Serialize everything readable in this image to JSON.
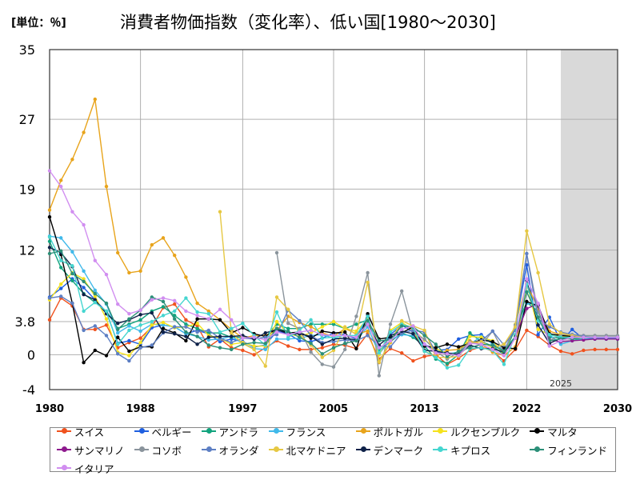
{
  "header": {
    "unit": "[単位：％]",
    "title": "消費者物価指数（変化率）、低い国[1980～2030]"
  },
  "chart_data": {
    "type": "line",
    "x_ticks": [
      1980,
      1988,
      1997,
      2005,
      2013,
      2022,
      2030
    ],
    "y_ticks": [
      35,
      27,
      19,
      12,
      3.8,
      0,
      -4
    ],
    "xlim": [
      1980,
      2030
    ],
    "ylim": [
      -4,
      35
    ],
    "grid": true,
    "forecast_from": 2025,
    "forecast_label": "2025",
    "legend_position": "bottom",
    "series": [
      {
        "name": "スイス",
        "color": "#f0521e",
        "values": [
          4.0,
          6.5,
          5.6,
          2.9,
          2.9,
          3.4,
          0.8,
          1.4,
          1.9,
          3.2,
          5.4,
          5.8,
          4.0,
          3.3,
          0.9,
          1.8,
          0.8,
          0.5,
          0.0,
          0.8,
          1.6,
          1.0,
          0.6,
          0.6,
          0.8,
          1.2,
          1.1,
          0.7,
          2.4,
          -0.5,
          0.7,
          0.2,
          -0.7,
          -0.2,
          0.0,
          -1.1,
          -0.4,
          0.5,
          0.9,
          0.4,
          -0.7,
          0.6,
          2.8,
          2.1,
          1.1,
          0.4,
          0.1,
          0.5,
          0.6,
          0.6,
          0.6
        ]
      },
      {
        "name": "ベルギー",
        "color": "#1f5fe0",
        "values": [
          6.6,
          7.6,
          8.7,
          7.7,
          6.3,
          4.9,
          1.3,
          1.6,
          1.2,
          3.1,
          3.4,
          3.2,
          2.4,
          2.8,
          2.4,
          1.5,
          1.8,
          1.5,
          0.9,
          1.1,
          2.7,
          2.4,
          1.6,
          1.5,
          1.9,
          2.5,
          2.3,
          1.8,
          4.5,
          0.0,
          2.3,
          3.4,
          2.6,
          1.2,
          0.5,
          0.6,
          1.8,
          2.2,
          2.3,
          1.2,
          0.4,
          3.2,
          10.3,
          2.3,
          4.3,
          1.5,
          2.9,
          1.8,
          1.9,
          1.9,
          1.9
        ]
      },
      {
        "name": "アンドラ",
        "color": "#11a37d",
        "values": [
          13.0,
          10.0,
          8.5,
          7.0,
          6.0,
          5.0,
          3.0,
          3.5,
          4.0,
          5.0,
          5.5,
          4.5,
          3.5,
          3.0,
          2.5,
          2.5,
          2.0,
          2.0,
          1.8,
          2.0,
          3.5,
          3.0,
          3.0,
          3.5,
          3.5,
          3.5,
          3.0,
          3.5,
          4.0,
          0.5,
          1.5,
          2.5,
          2.0,
          1.0,
          -0.5,
          -1.0,
          0.0,
          2.5,
          1.5,
          1.0,
          0.0,
          3.0,
          6.0,
          5.0,
          2.0,
          1.9,
          1.8,
          1.8,
          1.8,
          1.8,
          1.8
        ]
      },
      {
        "name": "フランス",
        "color": "#40b9ea",
        "values": [
          13.6,
          13.4,
          11.8,
          9.6,
          7.4,
          5.8,
          2.5,
          3.3,
          2.7,
          3.5,
          3.4,
          3.2,
          2.4,
          2.1,
          1.7,
          1.8,
          2.1,
          1.3,
          0.7,
          0.6,
          1.8,
          1.8,
          1.9,
          2.2,
          2.3,
          1.9,
          1.9,
          1.6,
          3.2,
          0.1,
          1.7,
          2.3,
          2.2,
          1.0,
          0.6,
          0.1,
          0.3,
          1.2,
          2.1,
          1.3,
          0.5,
          2.1,
          5.9,
          5.7,
          2.3,
          1.2,
          1.6,
          1.8,
          1.8,
          1.8,
          1.8
        ]
      },
      {
        "name": "ポルトガル",
        "color": "#e8a41c",
        "values": [
          16.6,
          20.0,
          22.4,
          25.5,
          29.3,
          19.3,
          11.7,
          9.4,
          9.6,
          12.6,
          13.4,
          11.4,
          8.9,
          5.9,
          5.0,
          4.0,
          2.9,
          1.9,
          2.2,
          2.2,
          2.8,
          4.4,
          3.7,
          3.2,
          2.5,
          2.1,
          3.0,
          2.4,
          2.7,
          -0.9,
          1.4,
          3.6,
          2.8,
          0.4,
          -0.2,
          0.5,
          0.6,
          1.6,
          1.2,
          0.3,
          -0.1,
          0.9,
          8.1,
          5.3,
          2.7,
          2.3,
          2.1,
          2.0,
          2.0,
          2.0,
          2.0
        ]
      },
      {
        "name": "ルクセンブルク",
        "color": "#f5e21c",
        "values": [
          6.3,
          8.1,
          9.4,
          8.7,
          6.7,
          4.1,
          0.3,
          -0.1,
          1.4,
          3.4,
          3.7,
          3.1,
          3.2,
          3.6,
          2.2,
          1.9,
          1.2,
          1.4,
          1.0,
          1.0,
          3.8,
          2.4,
          2.1,
          2.5,
          3.2,
          3.8,
          3.0,
          2.7,
          4.1,
          0.0,
          2.8,
          3.7,
          2.9,
          1.7,
          0.7,
          0.1,
          0.0,
          2.1,
          2.0,
          1.6,
          0.0,
          3.5,
          8.2,
          2.9,
          2.3,
          2.1,
          2.0,
          2.0,
          2.0,
          2.0,
          2.0
        ]
      },
      {
        "name": "マルタ",
        "color": "#000000",
        "values": [
          15.8,
          11.5,
          5.9,
          -0.9,
          0.5,
          -0.1,
          2.0,
          0.4,
          0.9,
          0.9,
          3.0,
          2.5,
          1.6,
          4.1,
          4.1,
          4.0,
          2.5,
          3.1,
          2.4,
          2.1,
          3.0,
          2.5,
          2.6,
          1.9,
          2.7,
          2.5,
          2.6,
          0.7,
          4.7,
          1.8,
          2.0,
          2.5,
          3.2,
          1.0,
          0.8,
          1.2,
          0.9,
          1.3,
          1.7,
          1.5,
          0.8,
          0.7,
          6.1,
          5.6,
          2.4,
          2.2,
          2.1,
          2.0,
          2.0,
          2.0,
          2.0
        ]
      },
      {
        "name": "サンマリノ",
        "color": "#8e1a8e",
        "values": [
          null,
          null,
          null,
          null,
          null,
          null,
          null,
          null,
          null,
          null,
          null,
          null,
          null,
          null,
          null,
          null,
          null,
          null,
          null,
          null,
          null,
          null,
          null,
          null,
          null,
          null,
          null,
          null,
          null,
          null,
          null,
          null,
          null,
          null,
          null,
          null,
          null,
          null,
          null,
          null,
          null,
          2.1,
          5.3,
          5.8,
          1.7,
          1.5,
          1.6,
          1.7,
          1.8,
          1.8,
          1.8
        ]
      },
      {
        "name": "コソボ",
        "color": "#8a949c",
        "values": [
          null,
          null,
          null,
          null,
          null,
          null,
          null,
          null,
          null,
          null,
          null,
          null,
          null,
          null,
          null,
          null,
          null,
          null,
          null,
          null,
          11.7,
          3.6,
          3.0,
          0.3,
          -1.1,
          -1.4,
          0.6,
          4.4,
          9.4,
          -2.4,
          3.5,
          7.3,
          2.5,
          1.8,
          0.4,
          -0.5,
          0.3,
          1.5,
          1.1,
          2.7,
          0.2,
          3.4,
          11.6,
          4.9,
          1.6,
          2.3,
          2.3,
          2.2,
          2.2,
          2.2,
          2.2
        ]
      },
      {
        "name": "オランダ",
        "color": "#5d7fc4",
        "values": [
          6.5,
          6.7,
          5.9,
          2.8,
          3.3,
          2.2,
          0.1,
          -0.7,
          0.8,
          1.1,
          2.5,
          3.2,
          3.2,
          2.6,
          2.8,
          1.9,
          1.4,
          1.9,
          1.8,
          2.0,
          2.3,
          5.1,
          3.9,
          2.2,
          1.4,
          1.5,
          1.7,
          1.6,
          2.2,
          1.0,
          0.9,
          2.5,
          2.8,
          2.6,
          0.3,
          0.2,
          0.1,
          1.3,
          1.6,
          2.7,
          1.1,
          2.8,
          11.6,
          4.1,
          3.2,
          2.6,
          2.3,
          2.1,
          2.0,
          2.0,
          2.0
        ]
      },
      {
        "name": "北マケドニア",
        "color": "#e6c843",
        "values": [
          null,
          null,
          null,
          null,
          null,
          null,
          null,
          null,
          null,
          null,
          null,
          null,
          null,
          null,
          null,
          16.4,
          2.5,
          1.3,
          0.6,
          -1.3,
          6.6,
          5.2,
          2.3,
          1.1,
          -0.3,
          0.5,
          3.2,
          2.3,
          8.3,
          -0.8,
          1.5,
          3.9,
          3.3,
          2.8,
          -0.3,
          -0.3,
          -0.2,
          1.4,
          1.5,
          0.8,
          1.2,
          3.2,
          14.2,
          9.4,
          3.5,
          2.5,
          2.2,
          2.0,
          2.0,
          2.0,
          2.0
        ]
      },
      {
        "name": "デンマーク",
        "color": "#0e2148",
        "values": [
          12.3,
          11.7,
          10.1,
          6.9,
          6.3,
          4.7,
          3.6,
          4.0,
          4.6,
          4.8,
          2.6,
          2.4,
          2.1,
          1.2,
          2.0,
          2.1,
          2.1,
          2.2,
          1.8,
          2.5,
          2.9,
          2.4,
          2.4,
          2.1,
          1.2,
          1.8,
          1.9,
          1.7,
          3.6,
          1.1,
          2.2,
          2.7,
          2.4,
          0.5,
          0.4,
          0.2,
          0.0,
          1.1,
          0.7,
          0.7,
          0.3,
          1.9,
          8.5,
          3.4,
          1.3,
          1.9,
          2.0,
          2.0,
          2.0,
          2.0,
          2.0
        ]
      },
      {
        "name": "キプロス",
        "color": "#45d6d0",
        "values": [
          13.5,
          10.8,
          10.2,
          5.0,
          6.0,
          5.0,
          1.2,
          2.8,
          3.4,
          3.8,
          4.5,
          5.0,
          6.5,
          4.9,
          4.7,
          2.6,
          3.0,
          3.6,
          2.2,
          1.1,
          4.9,
          2.0,
          2.8,
          4.0,
          1.9,
          2.0,
          2.2,
          2.2,
          4.4,
          0.2,
          2.6,
          3.5,
          3.1,
          0.4,
          -0.3,
          -1.5,
          -1.2,
          0.7,
          0.8,
          0.5,
          -1.1,
          2.3,
          8.1,
          3.9,
          2.3,
          2.0,
          2.0,
          2.0,
          2.0,
          2.0,
          2.0
        ]
      },
      {
        "name": "フィンランド",
        "color": "#2b8f78",
        "values": [
          11.6,
          11.9,
          9.3,
          8.4,
          7.0,
          5.9,
          2.9,
          4.1,
          5.1,
          6.6,
          6.1,
          4.1,
          2.6,
          2.1,
          1.1,
          0.8,
          0.6,
          1.2,
          1.4,
          1.3,
          3.0,
          2.7,
          2.0,
          1.3,
          0.1,
          0.8,
          1.3,
          1.6,
          3.9,
          1.6,
          1.7,
          3.3,
          3.2,
          2.2,
          1.2,
          -0.2,
          0.4,
          0.8,
          1.2,
          1.1,
          0.4,
          2.1,
          7.2,
          4.3,
          1.6,
          1.8,
          1.9,
          2.0,
          2.0,
          2.0,
          2.0
        ]
      },
      {
        "name": "イタリア",
        "color": "#d18ef0",
        "values": [
          21.1,
          19.3,
          16.4,
          14.9,
          10.8,
          9.2,
          5.8,
          4.7,
          5.1,
          6.3,
          6.5,
          6.2,
          5.0,
          4.5,
          4.1,
          5.2,
          4.0,
          1.9,
          2.0,
          1.7,
          2.6,
          2.3,
          2.6,
          2.8,
          2.3,
          2.2,
          2.2,
          2.0,
          3.5,
          0.8,
          1.6,
          2.9,
          3.3,
          1.2,
          0.2,
          0.1,
          -0.1,
          1.3,
          1.2,
          0.6,
          -0.1,
          1.9,
          8.7,
          5.9,
          1.0,
          1.6,
          2.0,
          2.0,
          2.0,
          2.0,
          2.0
        ]
      }
    ]
  }
}
